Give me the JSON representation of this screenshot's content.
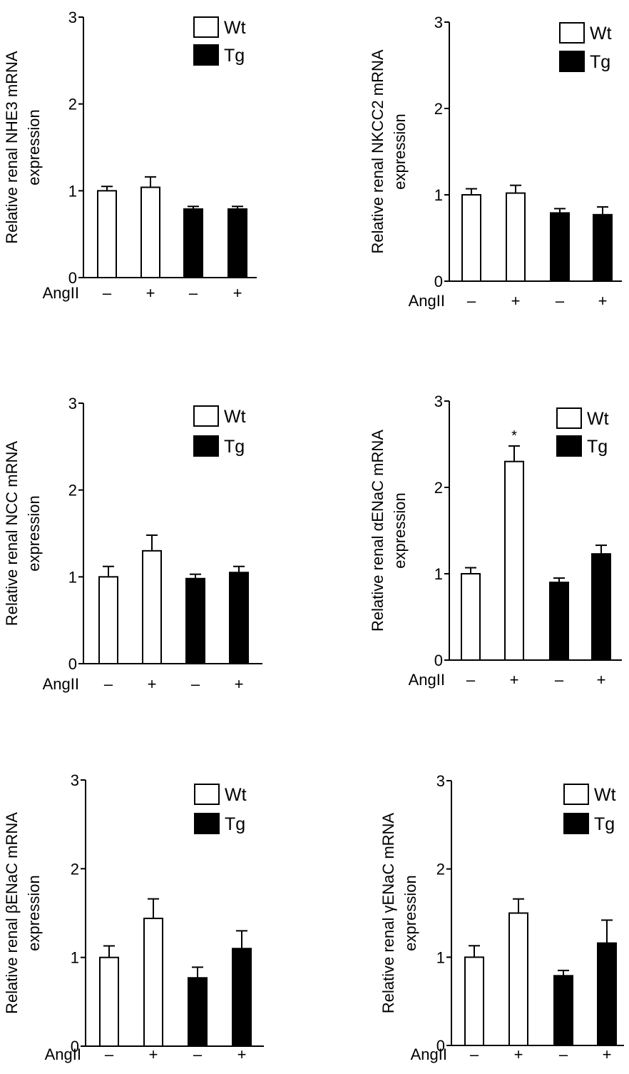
{
  "legend": {
    "wt": "Wt",
    "tg": "Tg"
  },
  "x_row_label": "AngII",
  "treatment_labels": [
    "–",
    "+",
    "–",
    "+"
  ],
  "colors": {
    "wt": "#ffffff",
    "tg": "#000000",
    "stroke": "#000000"
  },
  "chart_data": [
    {
      "type": "bar",
      "ylabel_lines": [
        "Relative renal NHE3 mRNA",
        "expression"
      ],
      "categories": [
        "–",
        "+",
        "–",
        "+"
      ],
      "groups": [
        "Wt",
        "Wt",
        "Tg",
        "Tg"
      ],
      "values": [
        1.0,
        1.04,
        0.79,
        0.79
      ],
      "errors": [
        0.05,
        0.12,
        0.03,
        0.03
      ],
      "ylim": [
        0,
        3
      ],
      "yticks": [
        0,
        1,
        2,
        3
      ],
      "annotations": [
        "",
        "",
        "",
        ""
      ],
      "legend_position": "top-right",
      "grid": false
    },
    {
      "type": "bar",
      "ylabel_lines": [
        "Relative renal NKCC2 mRNA",
        "expression"
      ],
      "categories": [
        "–",
        "+",
        "–",
        "+"
      ],
      "groups": [
        "Wt",
        "Wt",
        "Tg",
        "Tg"
      ],
      "values": [
        1.0,
        1.02,
        0.79,
        0.77
      ],
      "errors": [
        0.07,
        0.09,
        0.05,
        0.09
      ],
      "ylim": [
        0,
        3
      ],
      "yticks": [
        0,
        1,
        2,
        3
      ],
      "annotations": [
        "",
        "",
        "",
        ""
      ],
      "legend_position": "top-right",
      "grid": false
    },
    {
      "type": "bar",
      "ylabel_lines": [
        "Relative renal NCC mRNA",
        "expression"
      ],
      "categories": [
        "–",
        "+",
        "–",
        "+"
      ],
      "groups": [
        "Wt",
        "Wt",
        "Tg",
        "Tg"
      ],
      "values": [
        1.0,
        1.3,
        0.98,
        1.05
      ],
      "errors": [
        0.12,
        0.18,
        0.05,
        0.07
      ],
      "ylim": [
        0,
        3
      ],
      "yticks": [
        0,
        1,
        2,
        3
      ],
      "annotations": [
        "",
        "",
        "",
        ""
      ],
      "legend_position": "top-right",
      "grid": false
    },
    {
      "type": "bar",
      "ylabel_lines": [
        "Relative renal αENaC  mRNA",
        "expression"
      ],
      "categories": [
        "–",
        "+",
        "–",
        "+"
      ],
      "groups": [
        "Wt",
        "Wt",
        "Tg",
        "Tg"
      ],
      "values": [
        1.0,
        2.3,
        0.9,
        1.23
      ],
      "errors": [
        0.07,
        0.18,
        0.05,
        0.1
      ],
      "ylim": [
        0,
        3
      ],
      "yticks": [
        0,
        1,
        2,
        3
      ],
      "annotations": [
        "",
        "*",
        "",
        ""
      ],
      "legend_position": "top-right",
      "grid": false
    },
    {
      "type": "bar",
      "ylabel_lines": [
        "Relative renal βENaC mRNA",
        "expression"
      ],
      "categories": [
        "–",
        "+",
        "–",
        "+"
      ],
      "groups": [
        "Wt",
        "Wt",
        "Tg",
        "Tg"
      ],
      "values": [
        1.0,
        1.44,
        0.77,
        1.1
      ],
      "errors": [
        0.13,
        0.22,
        0.12,
        0.2
      ],
      "ylim": [
        0,
        3
      ],
      "yticks": [
        0,
        1,
        2,
        3
      ],
      "annotations": [
        "",
        "",
        "",
        ""
      ],
      "legend_position": "top-right",
      "grid": false
    },
    {
      "type": "bar",
      "ylabel_lines": [
        "Relative renal γENaC mRNA",
        "expression"
      ],
      "categories": [
        "–",
        "+",
        "–",
        "+"
      ],
      "groups": [
        "Wt",
        "Wt",
        "Tg",
        "Tg"
      ],
      "values": [
        1.0,
        1.5,
        0.79,
        1.16
      ],
      "errors": [
        0.13,
        0.16,
        0.06,
        0.26
      ],
      "ylim": [
        0,
        3
      ],
      "yticks": [
        0,
        1,
        2,
        3
      ],
      "annotations": [
        "",
        "",
        "",
        ""
      ],
      "legend_position": "top-right",
      "grid": false
    }
  ]
}
